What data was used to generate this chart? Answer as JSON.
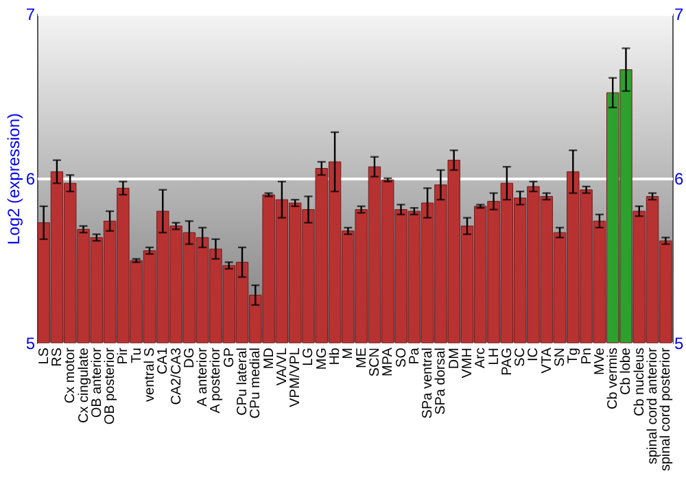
{
  "chart_data": {
    "type": "bar",
    "ylabel": "Log2 (expression)",
    "categories": [
      "LS",
      "RS",
      "Cx motor",
      "Cx cingulate",
      "OB anterior",
      "OB posterior",
      "Pir",
      "Tu",
      "ventral S",
      "CA1",
      "CA2/CA3",
      "DG",
      "A anterior",
      "A posterior",
      "GP",
      "CPu lateral",
      "CPu medial",
      "MD",
      "VA/VL",
      "VPM/VPL",
      "LG",
      "MG",
      "Hb",
      "M",
      "ME",
      "SCN",
      "MPA",
      "SO",
      "Pa",
      "SPa ventral",
      "SPa dorsal",
      "DM",
      "VMH",
      "Arc",
      "LH",
      "PAG",
      "SC",
      "IC",
      "VTA",
      "SN",
      "Tg",
      "Pn",
      "MVe",
      "Cb vermis",
      "Cb lobe",
      "Cb nucleus",
      "spinal cord anterior",
      "spinal cord posterior"
    ],
    "values": [
      5.73,
      6.04,
      5.97,
      5.69,
      5.64,
      5.74,
      5.94,
      5.5,
      5.56,
      5.8,
      5.71,
      5.67,
      5.64,
      5.57,
      5.47,
      5.49,
      5.29,
      5.9,
      5.87,
      5.85,
      5.81,
      6.06,
      6.1,
      5.68,
      5.81,
      6.07,
      5.99,
      5.81,
      5.8,
      5.85,
      5.96,
      6.11,
      5.71,
      5.83,
      5.86,
      5.97,
      5.88,
      5.95,
      5.89,
      5.67,
      6.04,
      5.93,
      5.74,
      6.52,
      6.66,
      5.8,
      5.89,
      5.62
    ],
    "errors": [
      0.1,
      0.07,
      0.05,
      0.02,
      0.02,
      0.06,
      0.04,
      0.01,
      0.02,
      0.13,
      0.02,
      0.07,
      0.06,
      0.06,
      0.02,
      0.09,
      0.06,
      0.01,
      0.11,
      0.02,
      0.08,
      0.04,
      0.18,
      0.02,
      0.02,
      0.06,
      0.01,
      0.03,
      0.02,
      0.09,
      0.09,
      0.06,
      0.05,
      0.01,
      0.05,
      0.1,
      0.04,
      0.03,
      0.02,
      0.03,
      0.13,
      0.02,
      0.04,
      0.09,
      0.13,
      0.03,
      0.02,
      0.02
    ],
    "colors": [
      "#b83232",
      "#b83232",
      "#b83232",
      "#b83232",
      "#b83232",
      "#b83232",
      "#b83232",
      "#b83232",
      "#b83232",
      "#b83232",
      "#b83232",
      "#b83232",
      "#b83232",
      "#b83232",
      "#b83232",
      "#b83232",
      "#b83232",
      "#b83232",
      "#b83232",
      "#b83232",
      "#b83232",
      "#b83232",
      "#b83232",
      "#b83232",
      "#b83232",
      "#b83232",
      "#b83232",
      "#b83232",
      "#b83232",
      "#b83232",
      "#b83232",
      "#b83232",
      "#b83232",
      "#b83232",
      "#b83232",
      "#b83232",
      "#b83232",
      "#b83232",
      "#b83232",
      "#b83232",
      "#b83232",
      "#b83232",
      "#b83232",
      "#2ea02e",
      "#2ea02e",
      "#b83232",
      "#b83232",
      "#b83232"
    ],
    "ylim": [
      5,
      7
    ],
    "yticks": [
      5,
      6,
      7
    ],
    "y2lim": [
      5,
      7
    ],
    "y2ticks": [
      5,
      6,
      7
    ],
    "grid": "y"
  }
}
